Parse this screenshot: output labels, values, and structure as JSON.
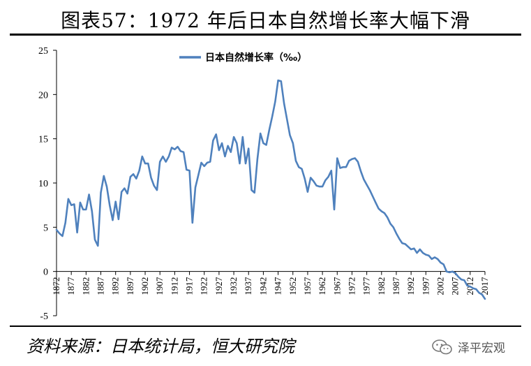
{
  "header": {
    "title": "图表57：1972 年后日本自然增长率大幅下滑"
  },
  "footer": {
    "source": "资料来源：日本统计局，恒大研究院",
    "watermark": "泽平宏观"
  },
  "colors": {
    "line": "#4F81BD",
    "axis": "#000000"
  },
  "chart_data": {
    "type": "line",
    "title": "",
    "xlabel": "",
    "ylabel": "",
    "ylim": [
      -5,
      25
    ],
    "yticks": [
      -5,
      0,
      5,
      10,
      15,
      20,
      25
    ],
    "xlim": [
      1872,
      2017
    ],
    "xticks": [
      1872,
      1877,
      1882,
      1887,
      1892,
      1897,
      1902,
      1907,
      1912,
      1917,
      1922,
      1927,
      1932,
      1937,
      1942,
      1947,
      1952,
      1957,
      1962,
      1967,
      1972,
      1977,
      1982,
      1987,
      1992,
      1997,
      2002,
      2007,
      2012,
      2017
    ],
    "legend": {
      "position": "top-center",
      "entries": [
        "日本自然增长率（‰）"
      ]
    },
    "grid": false,
    "series": [
      {
        "name": "日本自然增长率（‰）",
        "x": [
          1872,
          1873,
          1874,
          1875,
          1876,
          1877,
          1878,
          1879,
          1880,
          1881,
          1882,
          1883,
          1884,
          1885,
          1886,
          1887,
          1888,
          1889,
          1890,
          1891,
          1892,
          1893,
          1894,
          1895,
          1896,
          1897,
          1898,
          1899,
          1900,
          1901,
          1902,
          1903,
          1904,
          1905,
          1906,
          1907,
          1908,
          1909,
          1910,
          1911,
          1912,
          1913,
          1914,
          1915,
          1916,
          1917,
          1918,
          1919,
          1920,
          1921,
          1922,
          1923,
          1924,
          1925,
          1926,
          1927,
          1928,
          1929,
          1930,
          1931,
          1932,
          1933,
          1934,
          1935,
          1936,
          1937,
          1938,
          1939,
          1940,
          1941,
          1942,
          1943,
          1944,
          1945,
          1946,
          1947,
          1948,
          1949,
          1950,
          1951,
          1952,
          1953,
          1954,
          1955,
          1956,
          1957,
          1958,
          1959,
          1960,
          1961,
          1962,
          1963,
          1964,
          1965,
          1966,
          1967,
          1968,
          1969,
          1970,
          1971,
          1972,
          1973,
          1974,
          1975,
          1976,
          1977,
          1978,
          1979,
          1980,
          1981,
          1982,
          1983,
          1984,
          1985,
          1986,
          1987,
          1988,
          1989,
          1990,
          1991,
          1992,
          1993,
          1994,
          1995,
          1996,
          1997,
          1998,
          1999,
          2000,
          2001,
          2002,
          2003,
          2004,
          2005,
          2006,
          2007,
          2008,
          2009,
          2010,
          2011,
          2012,
          2013,
          2014,
          2015,
          2016,
          2017
        ],
        "values": [
          4.7,
          4.3,
          4.0,
          5.5,
          8.2,
          7.5,
          7.6,
          4.4,
          7.8,
          7.0,
          7.0,
          8.7,
          6.8,
          3.6,
          2.9,
          8.9,
          10.8,
          9.6,
          7.5,
          5.8,
          7.9,
          5.9,
          9.0,
          9.4,
          8.8,
          10.7,
          11.0,
          10.5,
          11.4,
          13.0,
          12.2,
          12.2,
          10.6,
          9.7,
          9.2,
          12.4,
          13.0,
          12.4,
          13.0,
          14.0,
          13.8,
          14.1,
          13.6,
          13.5,
          11.5,
          11.4,
          5.5,
          9.5,
          10.9,
          12.3,
          11.9,
          12.3,
          12.4,
          14.8,
          15.5,
          13.7,
          14.5,
          13.0,
          14.2,
          13.5,
          15.2,
          14.5,
          12.2,
          15.2,
          12.2,
          13.9,
          9.2,
          8.9,
          12.7,
          15.6,
          14.5,
          14.3,
          16.0,
          17.5,
          19.2,
          21.6,
          21.5,
          19.0,
          17.2,
          15.4,
          14.5,
          12.5,
          11.8,
          11.6,
          10.5,
          9.0,
          10.6,
          10.2,
          9.7,
          9.6,
          9.6,
          10.3,
          10.7,
          11.4,
          7.0,
          12.8,
          11.7,
          11.8,
          11.8,
          12.5,
          12.7,
          12.8,
          12.4,
          11.3,
          10.4,
          9.8,
          9.2,
          8.5,
          7.8,
          7.1,
          6.8,
          6.6,
          6.1,
          5.4,
          5.0,
          4.3,
          3.7,
          3.2,
          3.1,
          2.8,
          2.5,
          2.6,
          2.1,
          2.5,
          2.1,
          1.9,
          1.8,
          1.4,
          1.6,
          1.4,
          1.0,
          0.8,
          0.0,
          -0.1,
          0.0,
          -0.2,
          -0.6,
          -0.9,
          -1.0,
          -1.6,
          -1.7,
          -1.9,
          -2.0,
          -2.4,
          -2.6,
          -3.1
        ]
      }
    ]
  }
}
